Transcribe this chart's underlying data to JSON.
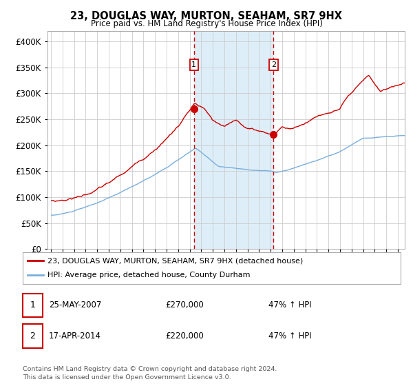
{
  "title": "23, DOUGLAS WAY, MURTON, SEAHAM, SR7 9HX",
  "subtitle": "Price paid vs. HM Land Registry's House Price Index (HPI)",
  "legend_line1": "23, DOUGLAS WAY, MURTON, SEAHAM, SR7 9HX (detached house)",
  "legend_line2": "HPI: Average price, detached house, County Durham",
  "footnote1": "Contains HM Land Registry data © Crown copyright and database right 2024.",
  "footnote2": "This data is licensed under the Open Government Licence v3.0.",
  "sale1_date": "25-MAY-2007",
  "sale1_price": 270000,
  "sale1_label": "47% ↑ HPI",
  "sale2_date": "17-APR-2014",
  "sale2_price": 220000,
  "sale2_label": "47% ↑ HPI",
  "red_color": "#cc0000",
  "blue_color": "#7aaedc",
  "shading_color": "#ddeef8",
  "grid_color": "#cccccc",
  "background_color": "#ffffff",
  "ylim": [
    0,
    420000
  ],
  "yticks": [
    0,
    50000,
    100000,
    150000,
    200000,
    250000,
    300000,
    350000,
    400000
  ],
  "sale1_x": 2007.37,
  "sale2_x": 2014.25
}
